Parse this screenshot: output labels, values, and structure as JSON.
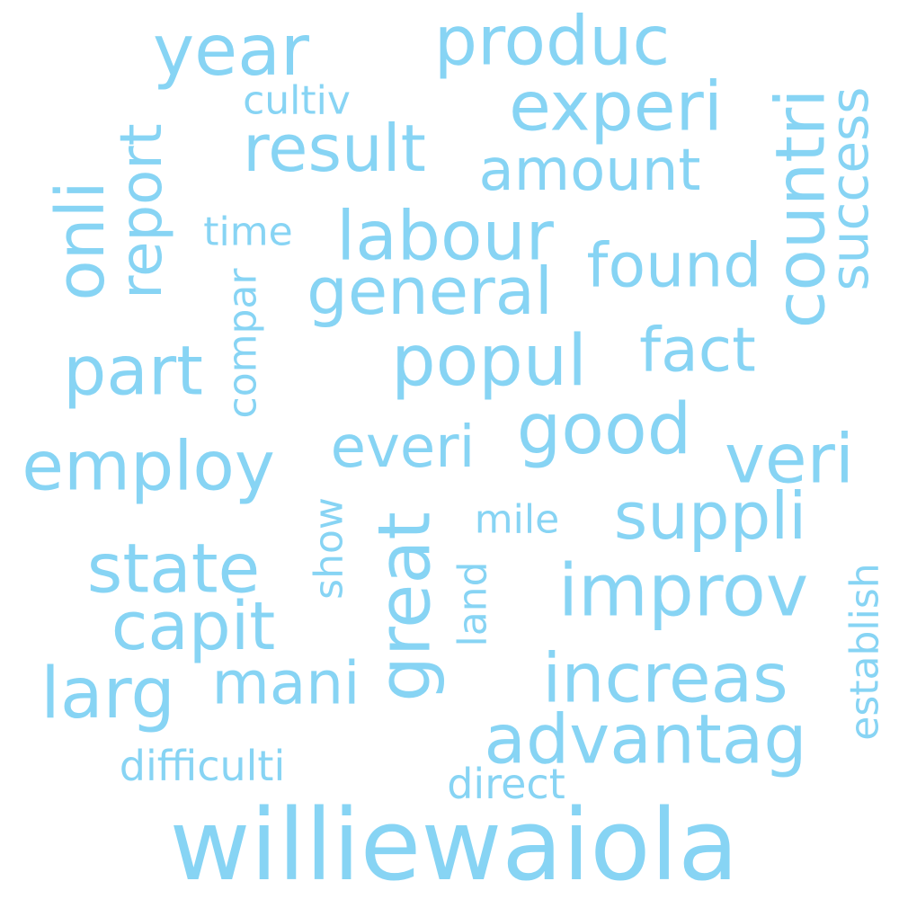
{
  "word_color": "#87d4f4",
  "words": [
    {
      "text": "williewaiola"
    },
    {
      "text": "year"
    },
    {
      "text": "produc"
    },
    {
      "text": "experi"
    },
    {
      "text": "result"
    },
    {
      "text": "countri"
    },
    {
      "text": "success"
    },
    {
      "text": "amount"
    },
    {
      "text": "cultiv"
    },
    {
      "text": "report"
    },
    {
      "text": "onli"
    },
    {
      "text": "labour"
    },
    {
      "text": "time"
    },
    {
      "text": "found"
    },
    {
      "text": "general"
    },
    {
      "text": "compar"
    },
    {
      "text": "part"
    },
    {
      "text": "popul"
    },
    {
      "text": "fact"
    },
    {
      "text": "employ"
    },
    {
      "text": "everi"
    },
    {
      "text": "good"
    },
    {
      "text": "veri"
    },
    {
      "text": "great"
    },
    {
      "text": "show"
    },
    {
      "text": "mile"
    },
    {
      "text": "suppli"
    },
    {
      "text": "state"
    },
    {
      "text": "improv"
    },
    {
      "text": "capit"
    },
    {
      "text": "land"
    },
    {
      "text": "establish"
    },
    {
      "text": "larg"
    },
    {
      "text": "mani"
    },
    {
      "text": "increas"
    },
    {
      "text": "advantag"
    },
    {
      "text": "difficulti"
    },
    {
      "text": "direct"
    }
  ]
}
